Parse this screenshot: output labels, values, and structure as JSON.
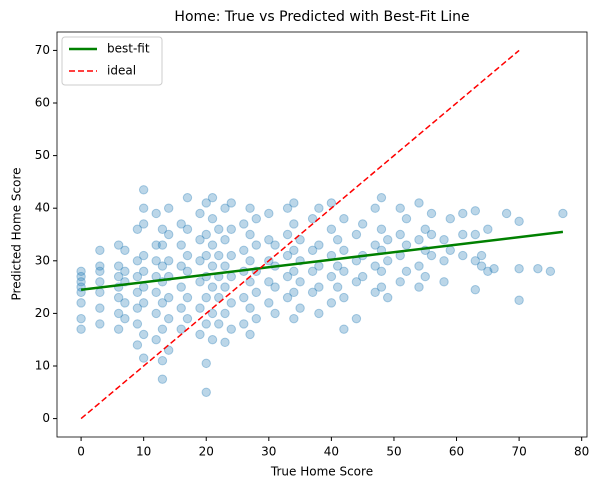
{
  "chart_data": {
    "type": "scatter",
    "title": "Home: True vs Predicted with Best-Fit Line",
    "x_label": "True Home Score",
    "y_label": "Predicted Home Score",
    "xlim": [
      -3.85,
      80.85
    ],
    "ylim": [
      -3.5,
      73.5
    ],
    "xticks": [
      0,
      10,
      20,
      30,
      40,
      50,
      60,
      70,
      80
    ],
    "yticks": [
      0,
      10,
      20,
      30,
      40,
      50,
      60,
      70
    ],
    "legend": "upper left",
    "scatter": {
      "color": "#1f77b4",
      "points": [
        [
          0,
          17
        ],
        [
          0,
          19
        ],
        [
          0,
          22
        ],
        [
          0,
          24
        ],
        [
          0,
          25
        ],
        [
          0,
          26
        ],
        [
          0,
          27
        ],
        [
          0,
          28
        ],
        [
          3,
          18
        ],
        [
          3,
          21
        ],
        [
          3,
          24
        ],
        [
          3,
          26
        ],
        [
          3,
          28
        ],
        [
          3,
          29
        ],
        [
          3,
          32
        ],
        [
          6,
          17
        ],
        [
          6,
          20
        ],
        [
          6,
          23
        ],
        [
          6,
          25
        ],
        [
          6,
          27
        ],
        [
          6,
          29
        ],
        [
          6,
          33
        ],
        [
          7,
          19
        ],
        [
          7,
          22
        ],
        [
          7,
          26
        ],
        [
          7,
          28
        ],
        [
          7,
          32
        ],
        [
          9,
          14
        ],
        [
          9,
          18
        ],
        [
          9,
          21
        ],
        [
          9,
          24
        ],
        [
          9,
          27
        ],
        [
          9,
          30
        ],
        [
          9,
          36
        ],
        [
          10,
          11.5
        ],
        [
          10,
          16
        ],
        [
          10,
          22
        ],
        [
          10,
          25
        ],
        [
          10,
          28
        ],
        [
          10,
          31
        ],
        [
          10,
          37
        ],
        [
          10,
          40
        ],
        [
          10,
          43.5
        ],
        [
          12,
          15
        ],
        [
          12,
          20
        ],
        [
          12,
          24
        ],
        [
          12,
          27
        ],
        [
          12,
          30
        ],
        [
          12,
          33
        ],
        [
          12,
          39
        ],
        [
          13,
          7.5
        ],
        [
          13,
          11
        ],
        [
          13,
          17
        ],
        [
          13,
          22
        ],
        [
          13,
          26
        ],
        [
          13,
          29
        ],
        [
          13,
          33
        ],
        [
          13,
          36
        ],
        [
          14,
          13
        ],
        [
          14,
          19
        ],
        [
          14,
          23
        ],
        [
          14,
          27
        ],
        [
          14,
          30
        ],
        [
          14,
          35
        ],
        [
          14,
          40
        ],
        [
          16,
          17
        ],
        [
          16,
          21
        ],
        [
          16,
          25
        ],
        [
          16,
          29
        ],
        [
          16,
          33
        ],
        [
          16,
          37
        ],
        [
          17,
          19
        ],
        [
          17,
          23
        ],
        [
          17,
          28
        ],
        [
          17,
          31
        ],
        [
          17,
          36
        ],
        [
          17,
          42
        ],
        [
          19,
          16
        ],
        [
          19,
          21
        ],
        [
          19,
          26
        ],
        [
          19,
          30
        ],
        [
          19,
          34
        ],
        [
          19,
          39
        ],
        [
          20,
          5
        ],
        [
          20,
          10.5
        ],
        [
          20,
          18
        ],
        [
          20,
          23
        ],
        [
          20,
          27
        ],
        [
          20,
          31
        ],
        [
          20,
          35
        ],
        [
          20,
          41
        ],
        [
          21,
          15
        ],
        [
          21,
          20
        ],
        [
          21,
          25
        ],
        [
          21,
          29
        ],
        [
          21,
          33
        ],
        [
          21,
          38
        ],
        [
          21,
          42
        ],
        [
          22,
          18
        ],
        [
          22,
          23
        ],
        [
          22,
          27
        ],
        [
          22,
          31
        ],
        [
          22,
          36
        ],
        [
          23,
          14.5
        ],
        [
          23,
          20
        ],
        [
          23,
          25
        ],
        [
          23,
          29
        ],
        [
          23,
          34
        ],
        [
          23,
          40
        ],
        [
          24,
          17
        ],
        [
          24,
          22
        ],
        [
          24,
          27
        ],
        [
          24,
          31
        ],
        [
          24,
          36
        ],
        [
          24,
          41
        ],
        [
          26,
          18
        ],
        [
          26,
          23
        ],
        [
          26,
          28
        ],
        [
          26,
          32
        ],
        [
          26,
          37
        ],
        [
          27,
          16
        ],
        [
          27,
          21
        ],
        [
          27,
          26
        ],
        [
          27,
          30
        ],
        [
          27,
          35
        ],
        [
          27,
          40
        ],
        [
          28,
          19
        ],
        [
          28,
          24
        ],
        [
          28,
          28
        ],
        [
          28,
          33
        ],
        [
          28,
          38
        ],
        [
          30,
          22
        ],
        [
          30,
          26
        ],
        [
          30,
          30
        ],
        [
          30,
          34
        ],
        [
          30,
          39
        ],
        [
          31,
          20
        ],
        [
          31,
          25
        ],
        [
          31,
          29
        ],
        [
          31,
          33
        ],
        [
          33,
          23
        ],
        [
          33,
          27
        ],
        [
          33,
          31
        ],
        [
          33,
          35
        ],
        [
          33,
          40
        ],
        [
          34,
          19
        ],
        [
          34,
          24
        ],
        [
          34,
          28
        ],
        [
          34,
          32
        ],
        [
          34,
          37
        ],
        [
          34,
          41
        ],
        [
          35,
          21
        ],
        [
          35,
          26
        ],
        [
          35,
          30
        ],
        [
          35,
          34
        ],
        [
          37,
          24
        ],
        [
          37,
          28
        ],
        [
          37,
          32
        ],
        [
          37,
          38
        ],
        [
          38,
          20
        ],
        [
          38,
          25
        ],
        [
          38,
          29
        ],
        [
          38,
          33
        ],
        [
          38,
          40
        ],
        [
          40,
          22
        ],
        [
          40,
          27
        ],
        [
          40,
          31
        ],
        [
          40,
          36
        ],
        [
          40,
          41
        ],
        [
          41,
          25
        ],
        [
          41,
          29
        ],
        [
          41,
          34
        ],
        [
          42,
          17
        ],
        [
          42,
          23
        ],
        [
          42,
          28
        ],
        [
          42,
          32
        ],
        [
          42,
          38
        ],
        [
          44,
          19
        ],
        [
          44,
          26
        ],
        [
          44,
          30
        ],
        [
          44,
          35
        ],
        [
          45,
          27
        ],
        [
          45,
          31
        ],
        [
          45,
          37
        ],
        [
          47,
          24
        ],
        [
          47,
          29
        ],
        [
          47,
          33
        ],
        [
          47,
          40
        ],
        [
          48,
          25
        ],
        [
          48,
          28
        ],
        [
          48,
          32
        ],
        [
          48,
          36
        ],
        [
          48,
          42
        ],
        [
          49,
          23
        ],
        [
          49,
          30
        ],
        [
          49,
          34
        ],
        [
          51,
          26
        ],
        [
          51,
          31
        ],
        [
          51,
          35
        ],
        [
          51,
          40
        ],
        [
          52,
          28
        ],
        [
          52,
          33
        ],
        [
          52,
          38
        ],
        [
          54,
          25
        ],
        [
          54,
          29
        ],
        [
          54,
          34
        ],
        [
          54,
          41
        ],
        [
          55,
          27
        ],
        [
          55,
          32
        ],
        [
          55,
          36
        ],
        [
          56,
          31
        ],
        [
          56,
          35
        ],
        [
          56,
          39
        ],
        [
          58,
          26
        ],
        [
          58,
          30
        ],
        [
          58,
          34
        ],
        [
          59,
          32
        ],
        [
          59,
          38
        ],
        [
          61,
          31
        ],
        [
          61,
          35
        ],
        [
          61,
          39
        ],
        [
          63,
          24.5
        ],
        [
          63,
          30
        ],
        [
          63,
          35
        ],
        [
          63,
          39.5
        ],
        [
          64,
          29
        ],
        [
          64,
          31
        ],
        [
          65,
          28
        ],
        [
          65,
          36
        ],
        [
          66,
          28.5
        ],
        [
          68,
          39
        ],
        [
          70,
          22.5
        ],
        [
          70,
          28.5
        ],
        [
          70,
          37.5
        ],
        [
          73,
          28.5
        ],
        [
          75,
          28
        ],
        [
          77,
          39
        ]
      ]
    },
    "lines": [
      {
        "name": "best-fit",
        "color": "#008000",
        "style": "solid",
        "x": [
          0,
          77
        ],
        "y": [
          24.5,
          35.5
        ]
      },
      {
        "name": "ideal",
        "color": "#ff0000",
        "style": "dashed",
        "x": [
          0,
          70
        ],
        "y": [
          0,
          70
        ]
      }
    ]
  }
}
